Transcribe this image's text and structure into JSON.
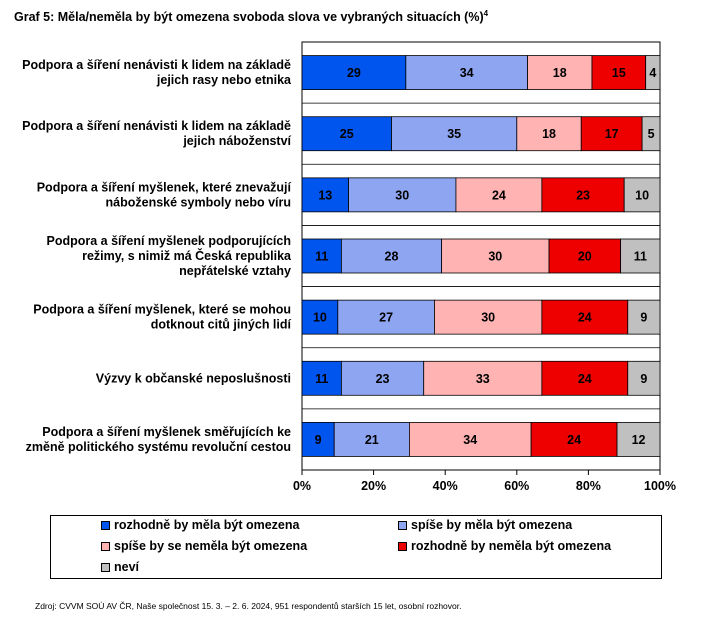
{
  "title": "Graf 5: Měla/neměla by být omezena svoboda slova ve vybraných situacích (%)",
  "title_footnote": "4",
  "source": "Zdroj: CVVM SOÚ AV ČR, Naše společnost 15. 3. – 2. 6. 2024, 951 respondentů starších 15 let, osobní rozhovor.",
  "chart_data": {
    "type": "bar",
    "orientation": "horizontal",
    "stacked": true,
    "categories": [
      [
        "Podpora a šíření nenávisti k lidem na základě",
        "jejich rasy nebo etnika"
      ],
      [
        "Podpora a šíření nenávisti k lidem na základě",
        "jejich náboženství"
      ],
      [
        "Podpora a šíření myšlenek, které znevažují",
        "náboženské symboly nebo víru"
      ],
      [
        "Podpora a šíření myšlenek podporujících",
        "režimy, s nimiž má Česká republika",
        "nepřátelské vztahy"
      ],
      [
        "Podpora a šíření myšlenek, které se mohou",
        "dotknout citů jiných lidí"
      ],
      [
        "Výzvy k občanské neposlušnosti"
      ],
      [
        "Podpora a šíření myšlenek směřujících ke",
        "změně politického systému revoluční cestou"
      ]
    ],
    "series": [
      {
        "name": "rozhodně by měla být omezena",
        "color": "#0055ee",
        "values": [
          29,
          25,
          13,
          11,
          10,
          11,
          9
        ]
      },
      {
        "name": "spíše by měla být omezena",
        "color": "#8ea6f2",
        "values": [
          34,
          35,
          30,
          28,
          27,
          23,
          21
        ]
      },
      {
        "name": "spíše by se neměla být omezena",
        "color": "#ffb3b3",
        "values": [
          18,
          18,
          24,
          30,
          30,
          33,
          34
        ]
      },
      {
        "name": "rozhodně by neměla být omezena",
        "color": "#ee0000",
        "values": [
          15,
          17,
          23,
          20,
          24,
          24,
          24
        ]
      },
      {
        "name": "neví",
        "color": "#c0c0c0",
        "values": [
          4,
          5,
          10,
          11,
          9,
          9,
          12
        ]
      }
    ],
    "xlim": [
      0,
      100
    ],
    "x_ticks": [
      "0%",
      "20%",
      "40%",
      "60%",
      "80%",
      "100%"
    ],
    "legend_position": "bottom"
  }
}
